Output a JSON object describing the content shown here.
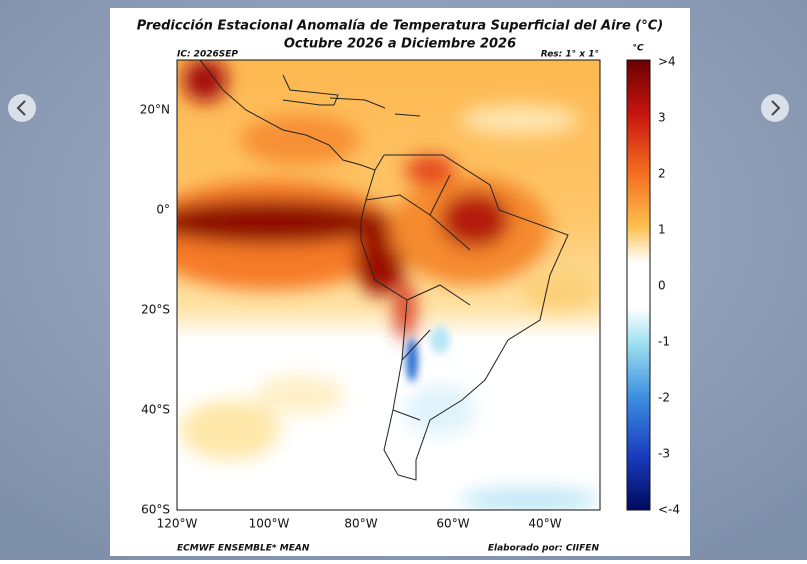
{
  "header": {
    "title_line1": "Predicción Estacional Anomalía de Temperatura Superficial del Aire (°C)",
    "title_line2": "Octubre 2026 a Diciembre 2026",
    "initial_condition": "IC: 2026SEP",
    "resolution": "Res: 1° x 1°"
  },
  "map": {
    "lat_labels": [
      "20°N",
      "0°",
      "20°S",
      "40°S",
      "60°S"
    ],
    "lon_labels": [
      "120°W",
      "100°W",
      "80°W",
      "60°W",
      "40°W"
    ]
  },
  "colorbar": {
    "unit": "°C",
    "labels": [
      ">4",
      "3",
      "2",
      "1",
      "0",
      "-1",
      "-2",
      "-3",
      "<-4"
    ]
  },
  "footer": {
    "model": "ECMWF ENSEMBLE* MEAN",
    "credit": "Elaborado por: CIIFEN"
  }
}
